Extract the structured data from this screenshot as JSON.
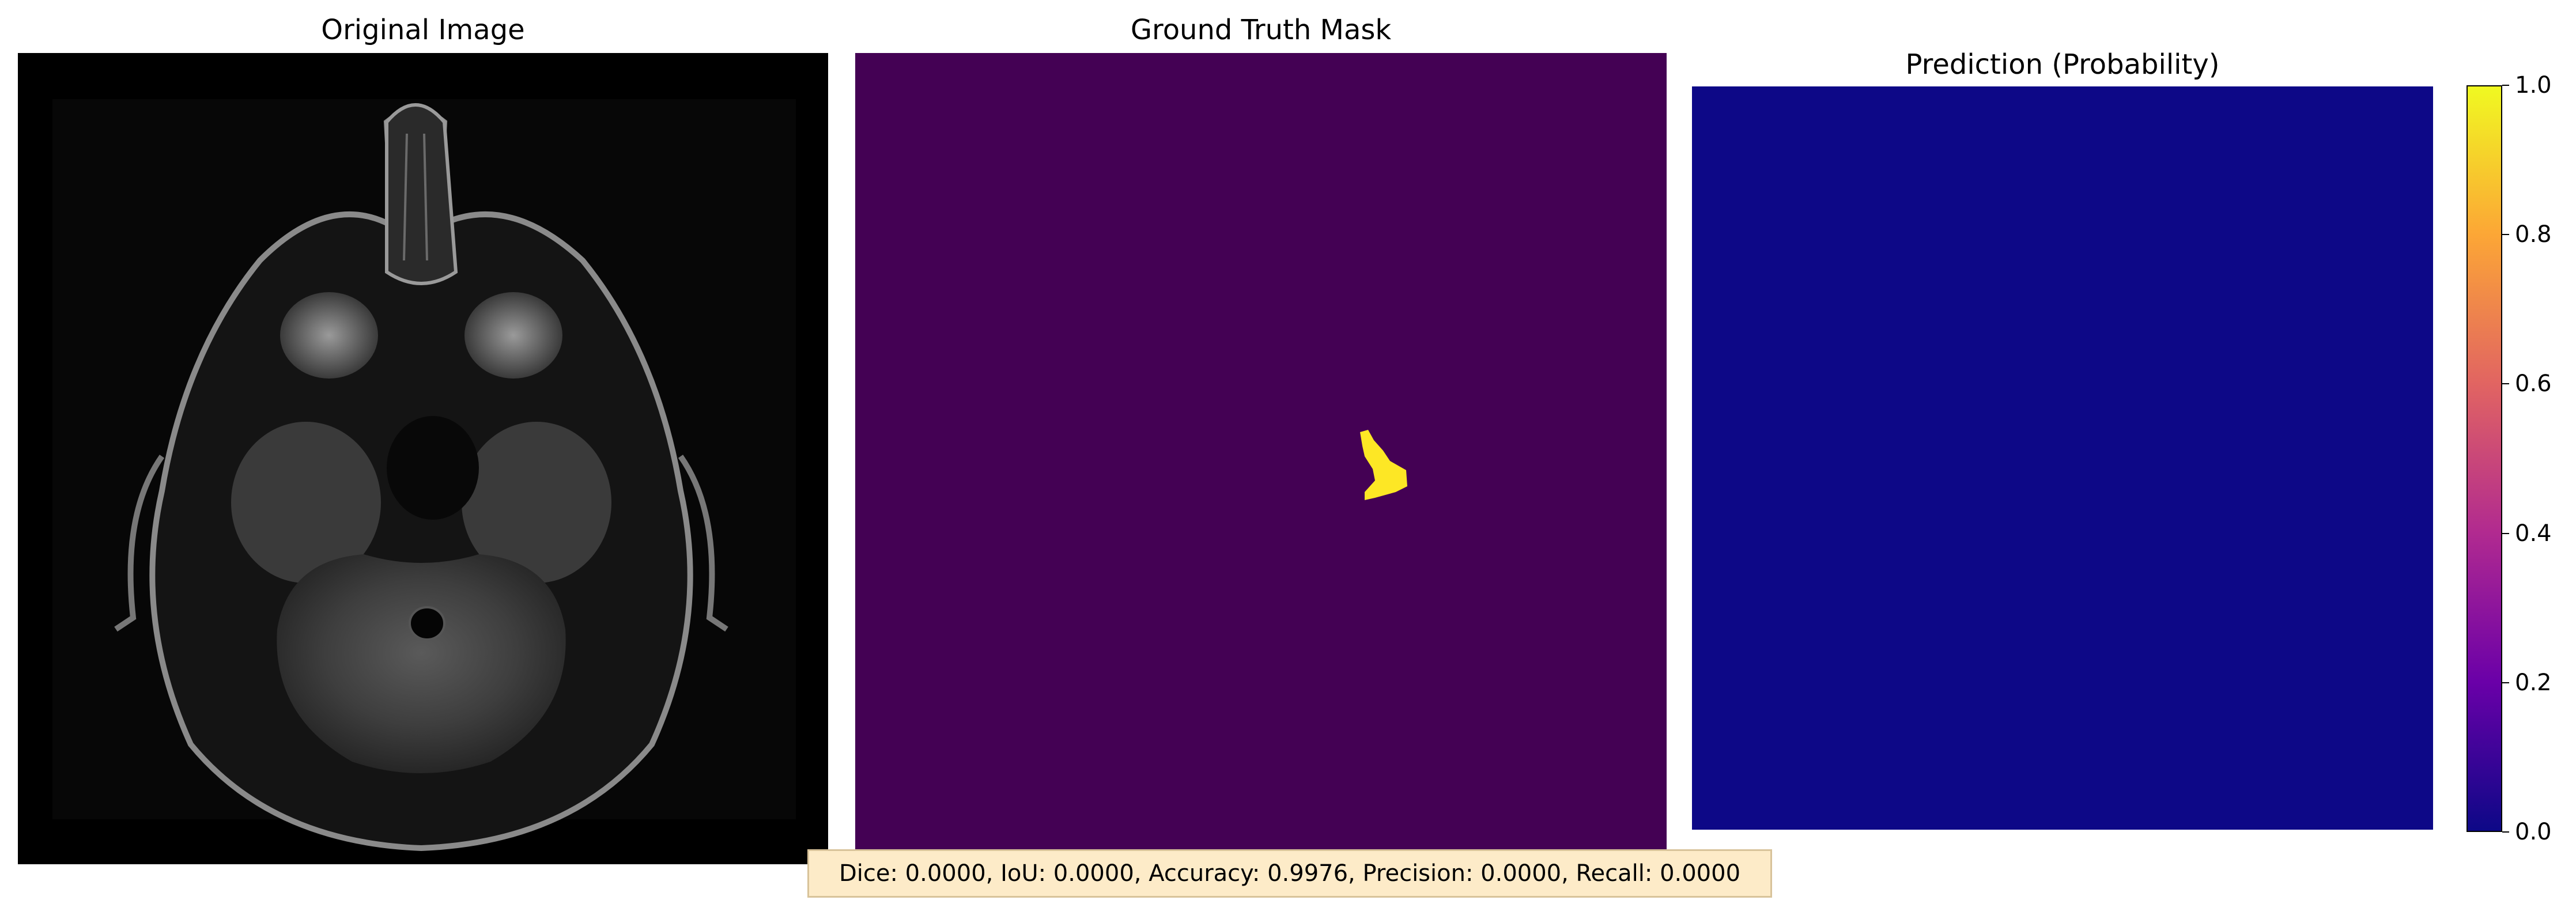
{
  "panels": {
    "original": {
      "title": "Original Image"
    },
    "ground_truth": {
      "title": "Ground Truth Mask"
    },
    "prediction": {
      "title": "Prediction (Probability)"
    }
  },
  "colors": {
    "mri_background": "#000000",
    "mask_background": "#440154",
    "mask_foreground": "#fde725",
    "prediction_fill": "#0d0887",
    "colorbar_stops": [
      "#0d0887",
      "#6a00a8",
      "#b12a90",
      "#e16462",
      "#fca636",
      "#f0f921"
    ],
    "metrics_box_fill": "#fdebc8",
    "metrics_box_border": "#d8c39a"
  },
  "colorbar": {
    "colormap": "plasma",
    "range": [
      0.0,
      1.0
    ],
    "ticks": [
      "0.0",
      "0.2",
      "0.4",
      "0.6",
      "0.8",
      "1.0"
    ]
  },
  "metrics": {
    "text": "Dice: 0.0000, IoU: 0.0000, Accuracy: 0.9976, Precision: 0.0000, Recall: 0.0000"
  }
}
